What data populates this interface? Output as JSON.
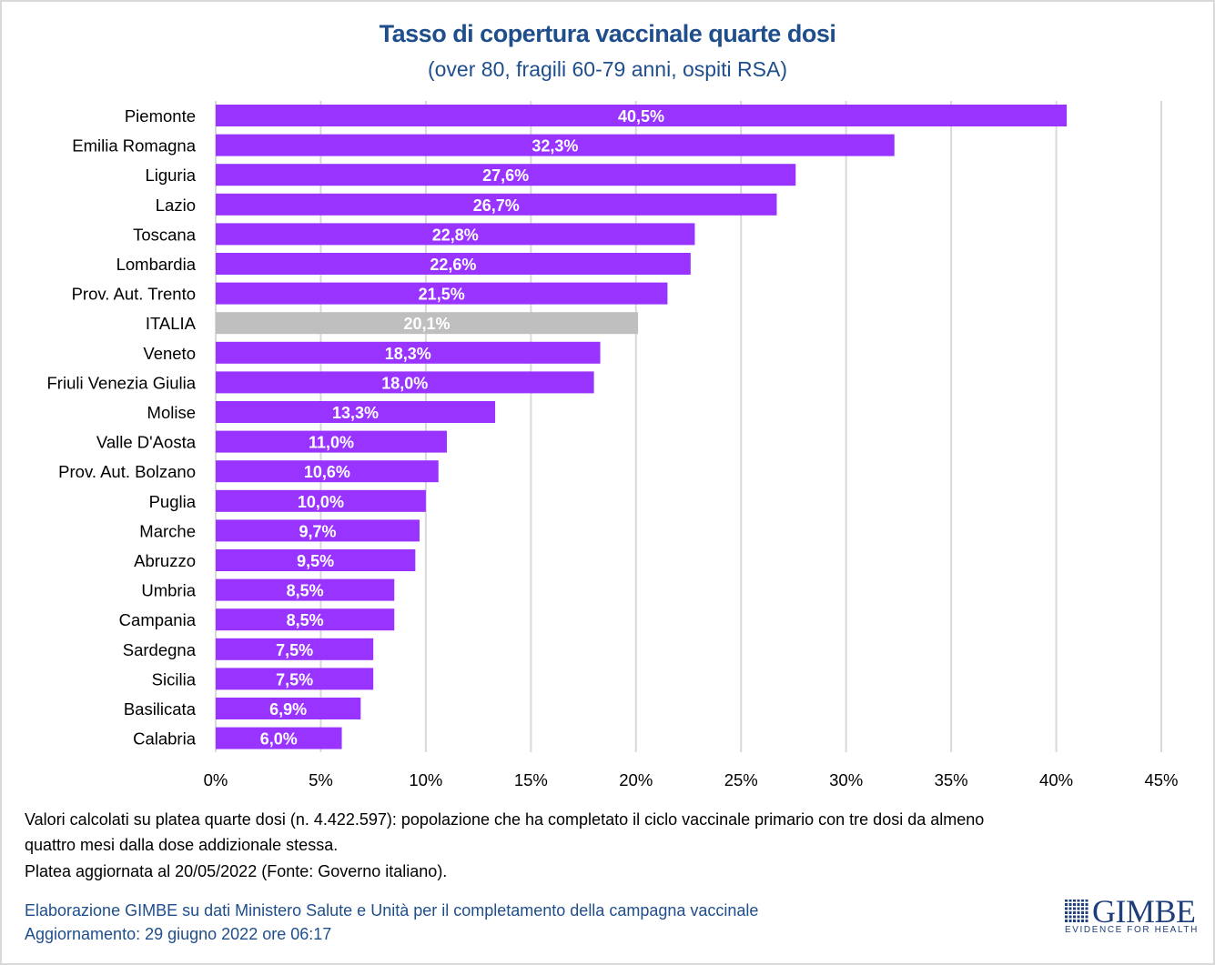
{
  "title": "Tasso di copertura vaccinale quarte dosi",
  "subtitle": "(over 80, fragili 60-79 anni, ospiti RSA)",
  "colors": {
    "bar": "#9933ff",
    "highlight_bar": "#bfbfbf",
    "grid": "#d9d9d9",
    "title": "#1f4e8c"
  },
  "chart_data": {
    "type": "bar",
    "orientation": "horizontal",
    "title": "Tasso di copertura vaccinale quarte dosi",
    "subtitle": "(over 80, fragili 60-79 anni, ospiti RSA)",
    "xlabel": "",
    "ylabel": "",
    "xlim": [
      0,
      45
    ],
    "x_ticks": [
      0,
      5,
      10,
      15,
      20,
      25,
      30,
      35,
      40,
      45
    ],
    "x_tick_labels": [
      "0%",
      "5%",
      "10%",
      "15%",
      "20%",
      "25%",
      "30%",
      "35%",
      "40%",
      "45%"
    ],
    "grid": "vertical",
    "legend": "none",
    "categories": [
      "Piemonte",
      "Emilia Romagna",
      "Liguria",
      "Lazio",
      "Toscana",
      "Lombardia",
      "Prov. Aut. Trento",
      "ITALIA",
      "Veneto",
      "Friuli Venezia Giulia",
      "Molise",
      "Valle D'Aosta",
      "Prov. Aut. Bolzano",
      "Puglia",
      "Marche",
      "Abruzzo",
      "Umbria",
      "Campania",
      "Sardegna",
      "Sicilia",
      "Basilicata",
      "Calabria"
    ],
    "values": [
      40.5,
      32.3,
      27.6,
      26.7,
      22.8,
      22.6,
      21.5,
      20.1,
      18.3,
      18.0,
      13.3,
      11.0,
      10.6,
      10.0,
      9.7,
      9.5,
      8.5,
      8.5,
      7.5,
      7.5,
      6.9,
      6.0
    ],
    "data_labels": [
      "40,5%",
      "32,3%",
      "27,6%",
      "26,7%",
      "22,8%",
      "22,6%",
      "21,5%",
      "20,1%",
      "18,3%",
      "18,0%",
      "13,3%",
      "11,0%",
      "10,6%",
      "10,0%",
      "9,7%",
      "9,5%",
      "8,5%",
      "8,5%",
      "7,5%",
      "7,5%",
      "6,9%",
      "6,0%"
    ],
    "highlight": "ITALIA"
  },
  "notes": {
    "line1": "Valori calcolati su platea quarte dosi (n. 4.422.597): popolazione che ha completato il ciclo vaccinale primario con tre dosi da almeno",
    "line2": "quattro mesi dalla dose addizionale stessa.",
    "line3": "Platea aggiornata al 20/05/2022 (Fonte: Governo italiano)."
  },
  "source": {
    "line1": "Elaborazione GIMBE su dati Ministero Salute e Unità per il completamento della campagna vaccinale",
    "line2": "Aggiornamento: 29 giugno 2022 ore 06:17"
  },
  "logo": {
    "name": "GIMBE",
    "tagline": "EVIDENCE FOR HEALTH"
  }
}
